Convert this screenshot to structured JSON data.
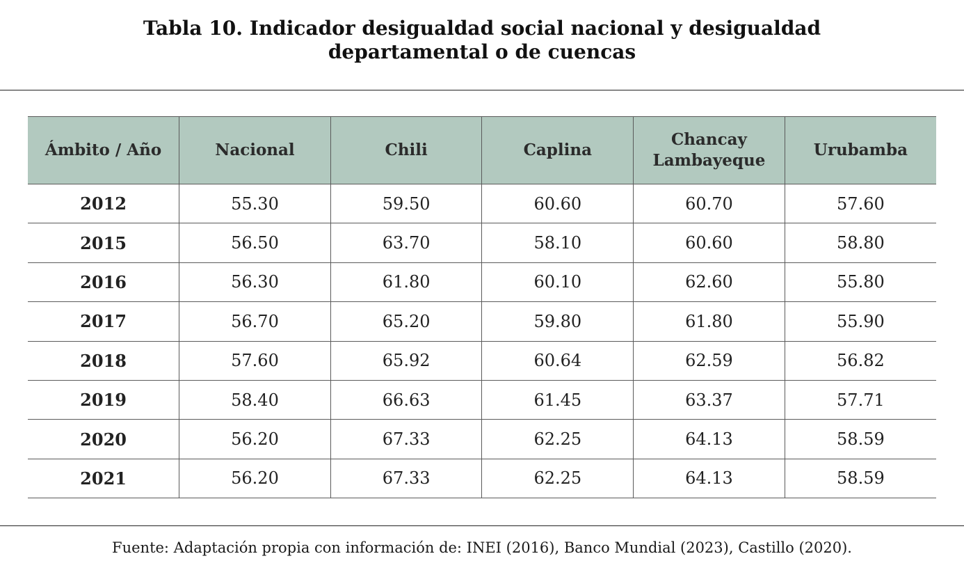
{
  "title": {
    "line1": "Tabla 10. Indicador desigualdad social nacional y desigualdad",
    "line2": "departamental o de cuencas"
  },
  "table": {
    "headers": [
      "Ámbito / Año",
      "Nacional",
      "Chili",
      "Caplina",
      "Chancay Lambayeque",
      "Urubamba"
    ],
    "rows": [
      [
        "2012",
        "55.30",
        "59.50",
        "60.60",
        "60.70",
        "57.60"
      ],
      [
        "2015",
        "56.50",
        "63.70",
        "58.10",
        "60.60",
        "58.80"
      ],
      [
        "2016",
        "56.30",
        "61.80",
        "60.10",
        "62.60",
        "55.80"
      ],
      [
        "2017",
        "56.70",
        "65.20",
        "59.80",
        "61.80",
        "55.90"
      ],
      [
        "2018",
        "57.60",
        "65.92",
        "60.64",
        "62.59",
        "56.82"
      ],
      [
        "2019",
        "58.40",
        "66.63",
        "61.45",
        "63.37",
        "57.71"
      ],
      [
        "2020",
        "56.20",
        "67.33",
        "62.25",
        "64.13",
        "58.59"
      ],
      [
        "2021",
        "56.20",
        "67.33",
        "62.25",
        "64.13",
        "58.59"
      ]
    ]
  },
  "source": "Fuente: Adaptación propia con información de: INEI (2016), Banco Mundial (2023), Castillo (2020).",
  "colors": {
    "header_background": "#b2c9bf",
    "border": "#5a5a5a"
  }
}
